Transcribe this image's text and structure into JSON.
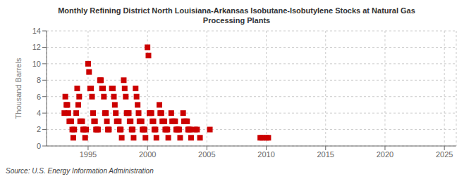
{
  "chart_data": {
    "type": "scatter",
    "title": "Monthly Refining District North Louisiana-Arkansas Isobutane-Isobutylene Stocks at Natural Gas\nProcessing Plants",
    "ylabel": "Thousand Barrels",
    "annotations": [
      "Source: U.S. Energy Information Administration"
    ],
    "color": "#cc0000",
    "marker": "square",
    "grid": true,
    "xlim": [
      1991.5,
      2026
    ],
    "ylim": [
      0,
      14
    ],
    "xticks": [
      1995,
      2000,
      2005,
      2010,
      2015,
      2020,
      2025
    ],
    "yticks": [
      0,
      2,
      4,
      6,
      8,
      10,
      12,
      14
    ],
    "x": [
      1993.0,
      1993.08,
      1993.17,
      1993.25,
      1993.33,
      1993.42,
      1993.5,
      1993.58,
      1993.67,
      1993.75,
      1993.83,
      1994.0,
      1994.08,
      1994.17,
      1994.25,
      1994.33,
      1994.42,
      1994.5,
      1994.58,
      1994.67,
      1994.75,
      1994.83,
      1995.0,
      1995.08,
      1995.17,
      1995.25,
      1995.33,
      1995.42,
      1995.5,
      1995.58,
      1995.67,
      1995.75,
      1995.83,
      1996.0,
      1996.08,
      1996.17,
      1996.25,
      1996.33,
      1996.42,
      1996.5,
      1996.58,
      1996.67,
      1996.75,
      1997.0,
      1997.08,
      1997.17,
      1997.25,
      1997.33,
      1997.42,
      1997.5,
      1997.58,
      1997.67,
      1997.75,
      1997.83,
      1998.0,
      1998.08,
      1998.17,
      1998.25,
      1998.33,
      1998.42,
      1998.5,
      1998.58,
      1998.67,
      1998.75,
      1998.83,
      1999.0,
      1999.08,
      1999.17,
      1999.25,
      1999.33,
      1999.42,
      1999.5,
      1999.58,
      1999.67,
      1999.75,
      1999.83,
      2000.0,
      2000.08,
      2000.17,
      2000.25,
      2000.33,
      2000.42,
      2000.5,
      2000.58,
      2000.67,
      2000.75,
      2001.0,
      2001.08,
      2001.17,
      2001.25,
      2001.33,
      2001.42,
      2001.5,
      2001.58,
      2001.67,
      2001.75,
      2002.0,
      2002.08,
      2002.17,
      2002.25,
      2002.33,
      2002.42,
      2002.5,
      2002.58,
      2002.67,
      2002.75,
      2003.0,
      2003.08,
      2003.17,
      2003.25,
      2003.33,
      2003.42,
      2003.5,
      2003.58,
      2003.67,
      2004.0,
      2004.17,
      2004.42,
      2005.25,
      2009.5,
      2009.67,
      2010.0,
      2010.17
    ],
    "values": [
      4,
      6,
      5,
      5,
      4,
      3,
      3,
      3,
      2,
      1,
      2,
      4,
      7,
      5,
      6,
      3,
      3,
      3,
      2,
      2,
      1,
      2,
      10,
      9,
      7,
      7,
      6,
      4,
      3,
      3,
      2,
      2,
      2,
      8,
      8,
      7,
      7,
      6,
      4,
      4,
      3,
      2,
      2,
      7,
      7,
      6,
      5,
      4,
      3,
      3,
      3,
      2,
      2,
      1,
      8,
      7,
      6,
      4,
      4,
      4,
      3,
      3,
      2,
      2,
      1,
      7,
      6,
      5,
      4,
      3,
      3,
      3,
      2,
      2,
      2,
      1,
      12,
      11,
      4,
      4,
      4,
      3,
      3,
      2,
      2,
      1,
      5,
      4,
      4,
      3,
      3,
      3,
      2,
      2,
      2,
      1,
      4,
      3,
      3,
      3,
      3,
      2,
      2,
      2,
      2,
      1,
      4,
      3,
      3,
      3,
      3,
      2,
      2,
      2,
      1,
      2,
      2,
      1,
      2,
      1,
      1,
      1,
      1
    ]
  }
}
